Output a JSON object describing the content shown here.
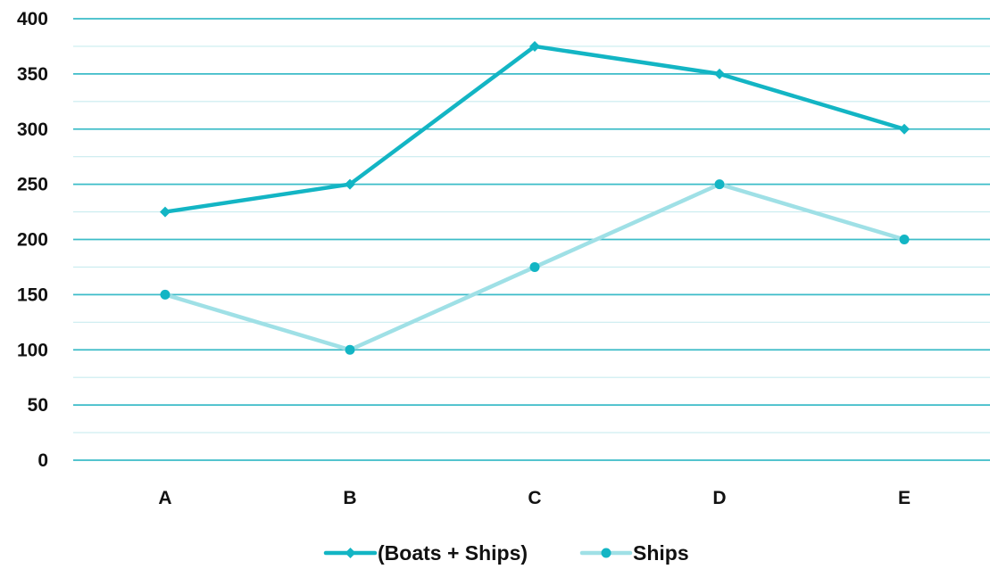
{
  "chart_data": {
    "type": "line",
    "title": "",
    "xlabel": "",
    "ylabel": "",
    "categories": [
      "A",
      "B",
      "C",
      "D",
      "E"
    ],
    "ylim": [
      0,
      400
    ],
    "y_major_ticks": [
      0,
      50,
      100,
      150,
      200,
      250,
      300,
      350,
      400
    ],
    "y_minor_step": 25,
    "grid": true,
    "legend_position": "bottom",
    "series": [
      {
        "name": "(Boats + Ships)",
        "values": [
          225,
          250,
          375,
          350,
          300
        ],
        "color": "#13b5c4",
        "marker": "diamond"
      },
      {
        "name": "Ships",
        "values": [
          150,
          100,
          175,
          250,
          200
        ],
        "color": "#9fe0e6",
        "marker": "circle",
        "marker_color": "#13b5c4"
      }
    ],
    "colors": {
      "major_grid": "#3cbcc8",
      "minor_grid": "#c9ecef"
    }
  }
}
